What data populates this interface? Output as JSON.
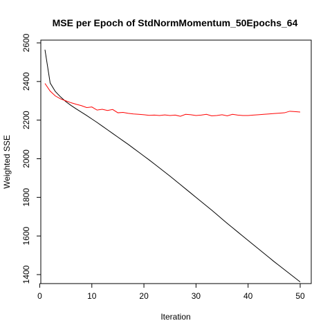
{
  "chart_data": {
    "type": "line",
    "title": "MSE per Epoch of StdNormMomentum_50Epochs_64",
    "xlabel": "Iteration",
    "ylabel": "Weighted SSE",
    "xlim": [
      1,
      50
    ],
    "ylim": [
      1400,
      2600
    ],
    "x_ticks": [
      0,
      10,
      20,
      30,
      40,
      50
    ],
    "y_ticks": [
      1400,
      1600,
      1800,
      2000,
      2200,
      2400,
      2600
    ],
    "grid": false,
    "x": [
      1,
      2,
      3,
      4,
      5,
      6,
      7,
      8,
      9,
      10,
      11,
      12,
      13,
      14,
      15,
      16,
      17,
      18,
      19,
      20,
      21,
      22,
      23,
      24,
      25,
      26,
      27,
      28,
      29,
      30,
      31,
      32,
      33,
      34,
      35,
      36,
      37,
      38,
      39,
      40,
      41,
      42,
      43,
      44,
      45,
      46,
      47,
      48,
      49,
      50
    ],
    "series": [
      {
        "color": "#000000",
        "values": [
          2565,
          2392,
          2348,
          2320,
          2296,
          2276,
          2258,
          2241,
          2224,
          2206,
          2188,
          2169,
          2150,
          2131,
          2112,
          2093,
          2074,
          2054,
          2034,
          2014,
          1994,
          1973,
          1952,
          1931,
          1910,
          1888,
          1866,
          1844,
          1822,
          1800,
          1778,
          1756,
          1734,
          1711,
          1688,
          1665,
          1643,
          1621,
          1599,
          1577,
          1555,
          1533,
          1511,
          1489,
          1467,
          1446,
          1425,
          1404,
          1383,
          1362
        ]
      },
      {
        "color": "#ff0000",
        "values": [
          2390,
          2350,
          2325,
          2310,
          2300,
          2290,
          2282,
          2275,
          2265,
          2268,
          2252,
          2256,
          2250,
          2255,
          2238,
          2240,
          2235,
          2232,
          2230,
          2228,
          2225,
          2226,
          2224,
          2227,
          2224,
          2226,
          2220,
          2230,
          2228,
          2224,
          2226,
          2230,
          2222,
          2224,
          2228,
          2222,
          2230,
          2226,
          2224,
          2224,
          2226,
          2228,
          2230,
          2232,
          2234,
          2236,
          2238,
          2246,
          2244,
          2242
        ]
      }
    ]
  }
}
